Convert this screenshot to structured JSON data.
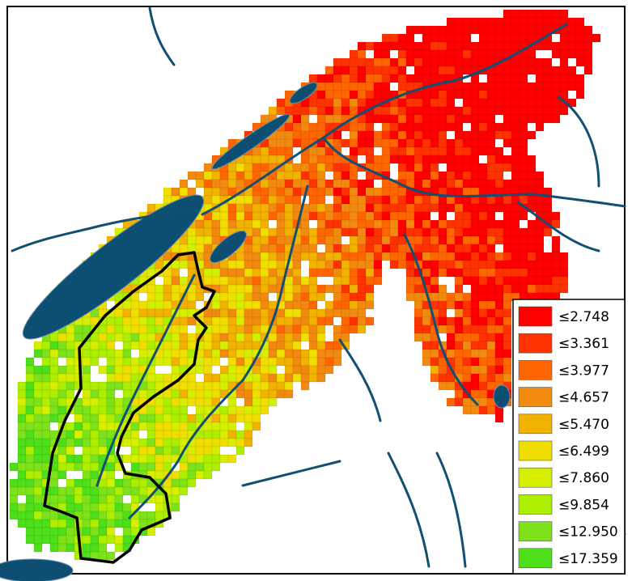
{
  "legend": {
    "items": [
      {
        "label": "≤2.748",
        "color": "#ff0000"
      },
      {
        "label": "≤3.361",
        "color": "#ff3300"
      },
      {
        "label": "≤3.977",
        "color": "#ff6600"
      },
      {
        "label": "≤4.657",
        "color": "#f28a10"
      },
      {
        "label": "≤5.470",
        "color": "#f2b200"
      },
      {
        "label": "≤6.499",
        "color": "#f0de00"
      },
      {
        "label": "≤7.860",
        "color": "#d6ee00"
      },
      {
        "label": "≤9.854",
        "color": "#aeee00"
      },
      {
        "label": "≤12.950",
        "color": "#7ee21a"
      },
      {
        "label": "≤17.359",
        "color": "#4ede1a"
      }
    ]
  }
}
